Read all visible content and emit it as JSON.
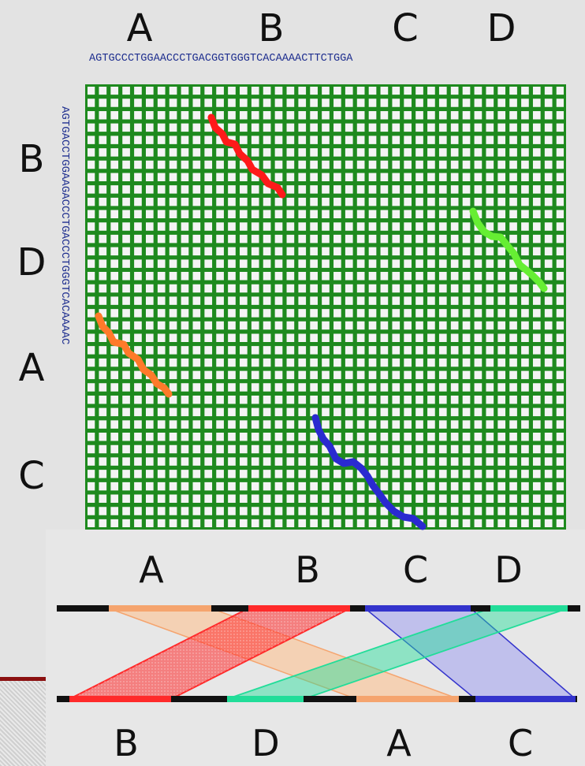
{
  "dotplot": {
    "top_segments": [
      "A",
      "B",
      "C",
      "D"
    ],
    "left_segments": [
      "B",
      "D",
      "A",
      "C"
    ],
    "top_sequence": "AGTGCCCTGGAACCCTGACGGTGGGTCACAAAACTTCTGGA",
    "left_sequence": "AGTGACCTGGAAGACCCTGACCCTGGGTCACAAAAC",
    "grid_color": "#1e8a1e",
    "match_colors": {
      "B": "#ff1a1a",
      "D": "#66ee33",
      "A": "#ff7a2a",
      "C": "#2a2ad0"
    }
  },
  "alignment": {
    "top_labels": [
      "A",
      "B",
      "C",
      "D"
    ],
    "bottom_labels": [
      "B",
      "D",
      "A",
      "C"
    ],
    "block_colors": {
      "A": "#f5a46e",
      "B": "#ff2a2a",
      "C": "#3333cc",
      "D": "#22dd99"
    }
  }
}
